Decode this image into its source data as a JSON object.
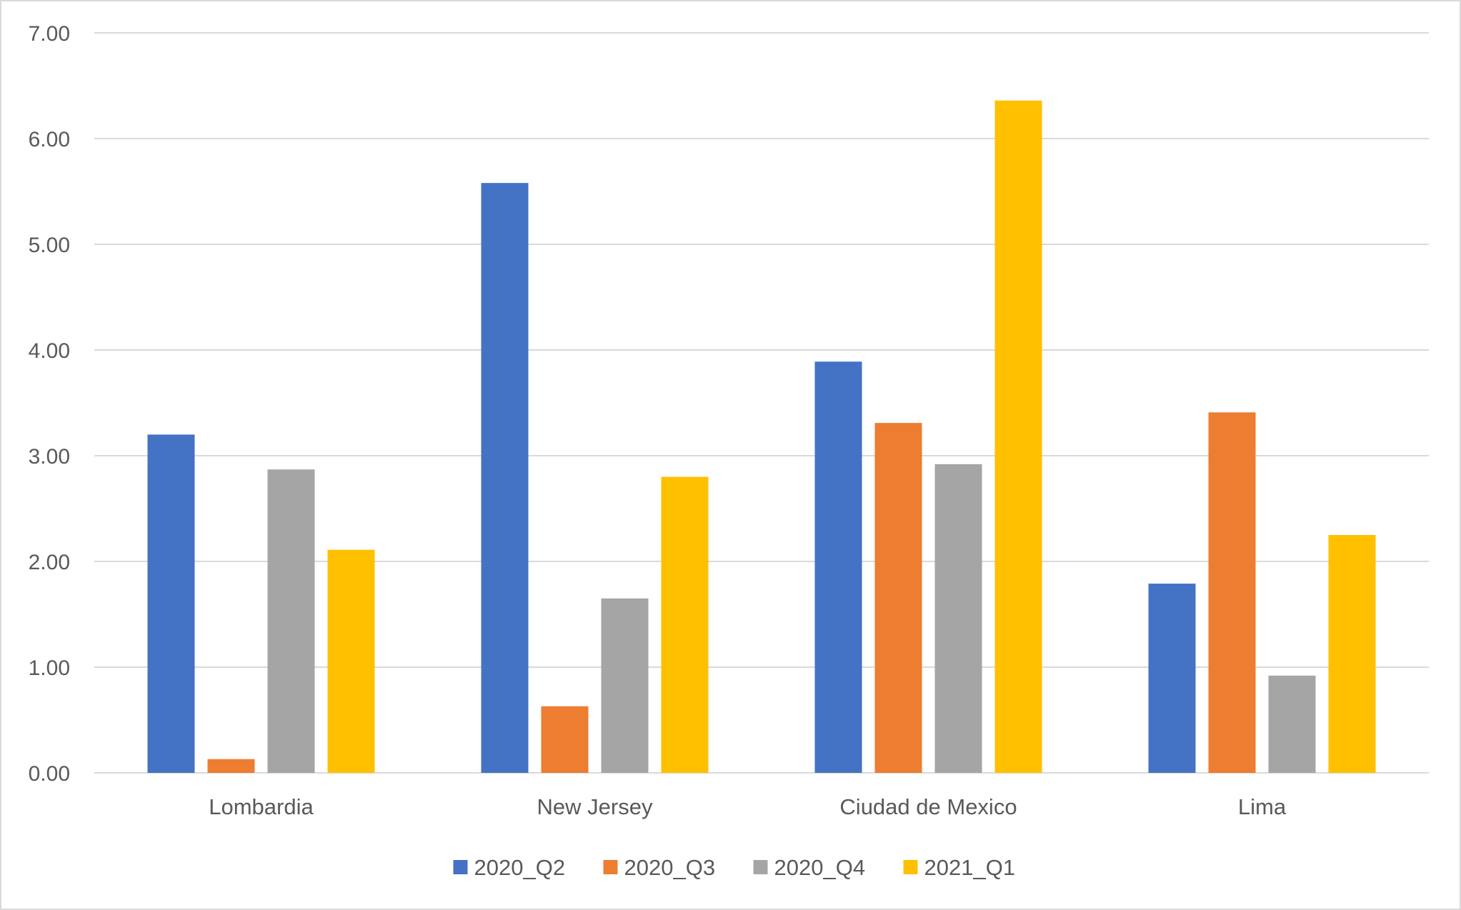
{
  "chart_data": {
    "type": "bar",
    "categories": [
      "Lombardia",
      "New Jersey",
      "Ciudad de Mexico",
      "Lima"
    ],
    "series": [
      {
        "name": "2020_Q2",
        "color": "#4472C4",
        "values": [
          3.2,
          5.58,
          3.89,
          1.79
        ]
      },
      {
        "name": "2020_Q3",
        "color": "#ED7D31",
        "values": [
          0.13,
          0.63,
          3.31,
          3.41
        ]
      },
      {
        "name": "2020_Q4",
        "color": "#A5A5A5",
        "values": [
          2.87,
          1.65,
          2.92,
          0.92
        ]
      },
      {
        "name": "2021_Q1",
        "color": "#FFC000",
        "values": [
          2.11,
          2.8,
          6.36,
          2.25
        ]
      }
    ],
    "yticks": [
      "0.00",
      "1.00",
      "2.00",
      "3.00",
      "4.00",
      "5.00",
      "6.00",
      "7.00"
    ],
    "ylim": [
      0,
      7
    ],
    "title": "",
    "xlabel": "",
    "ylabel": "",
    "grid": true,
    "legend_position": "bottom"
  }
}
